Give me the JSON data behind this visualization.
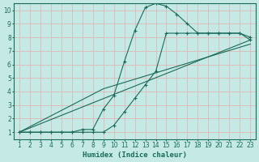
{
  "xlabel": "Humidex (Indice chaleur)",
  "xlim": [
    0.5,
    23.5
  ],
  "ylim": [
    0.5,
    10.5
  ],
  "xticks": [
    1,
    2,
    3,
    4,
    5,
    6,
    7,
    8,
    9,
    10,
    11,
    12,
    13,
    14,
    15,
    16,
    17,
    18,
    19,
    20,
    21,
    22,
    23
  ],
  "yticks": [
    1,
    2,
    3,
    4,
    5,
    6,
    7,
    8,
    9,
    10
  ],
  "bg_color": "#c5eae6",
  "grid_color": "#ddb8b8",
  "line_color": "#1a6b5a",
  "line1_x": [
    1,
    2,
    3,
    4,
    5,
    6,
    7,
    8,
    9,
    10,
    11,
    12,
    13,
    14,
    15,
    16,
    17,
    18,
    19,
    20,
    21,
    22,
    23
  ],
  "line1_y": [
    1,
    1,
    1,
    1,
    1,
    1,
    1.2,
    1.2,
    2.7,
    3.7,
    6.2,
    8.5,
    10.2,
    10.5,
    10.3,
    9.7,
    9.0,
    8.3,
    8.3,
    8.3,
    8.3,
    8.3,
    8.0
  ],
  "line2_x": [
    1,
    2,
    3,
    4,
    5,
    6,
    7,
    8,
    9,
    10,
    11,
    12,
    13,
    14,
    15,
    16,
    17,
    18,
    19,
    20,
    21,
    22,
    23
  ],
  "line2_y": [
    1,
    1,
    1,
    1,
    1,
    1,
    1,
    1,
    1,
    1.5,
    2.5,
    3.5,
    4.5,
    5.5,
    8.3,
    8.3,
    8.3,
    8.3,
    8.3,
    8.3,
    8.3,
    8.3,
    7.8
  ],
  "line3_x": [
    1,
    23
  ],
  "line3_y": [
    1,
    7.8
  ],
  "line4_x": [
    1,
    9,
    23
  ],
  "line4_y": [
    1,
    4.2,
    7.5
  ]
}
